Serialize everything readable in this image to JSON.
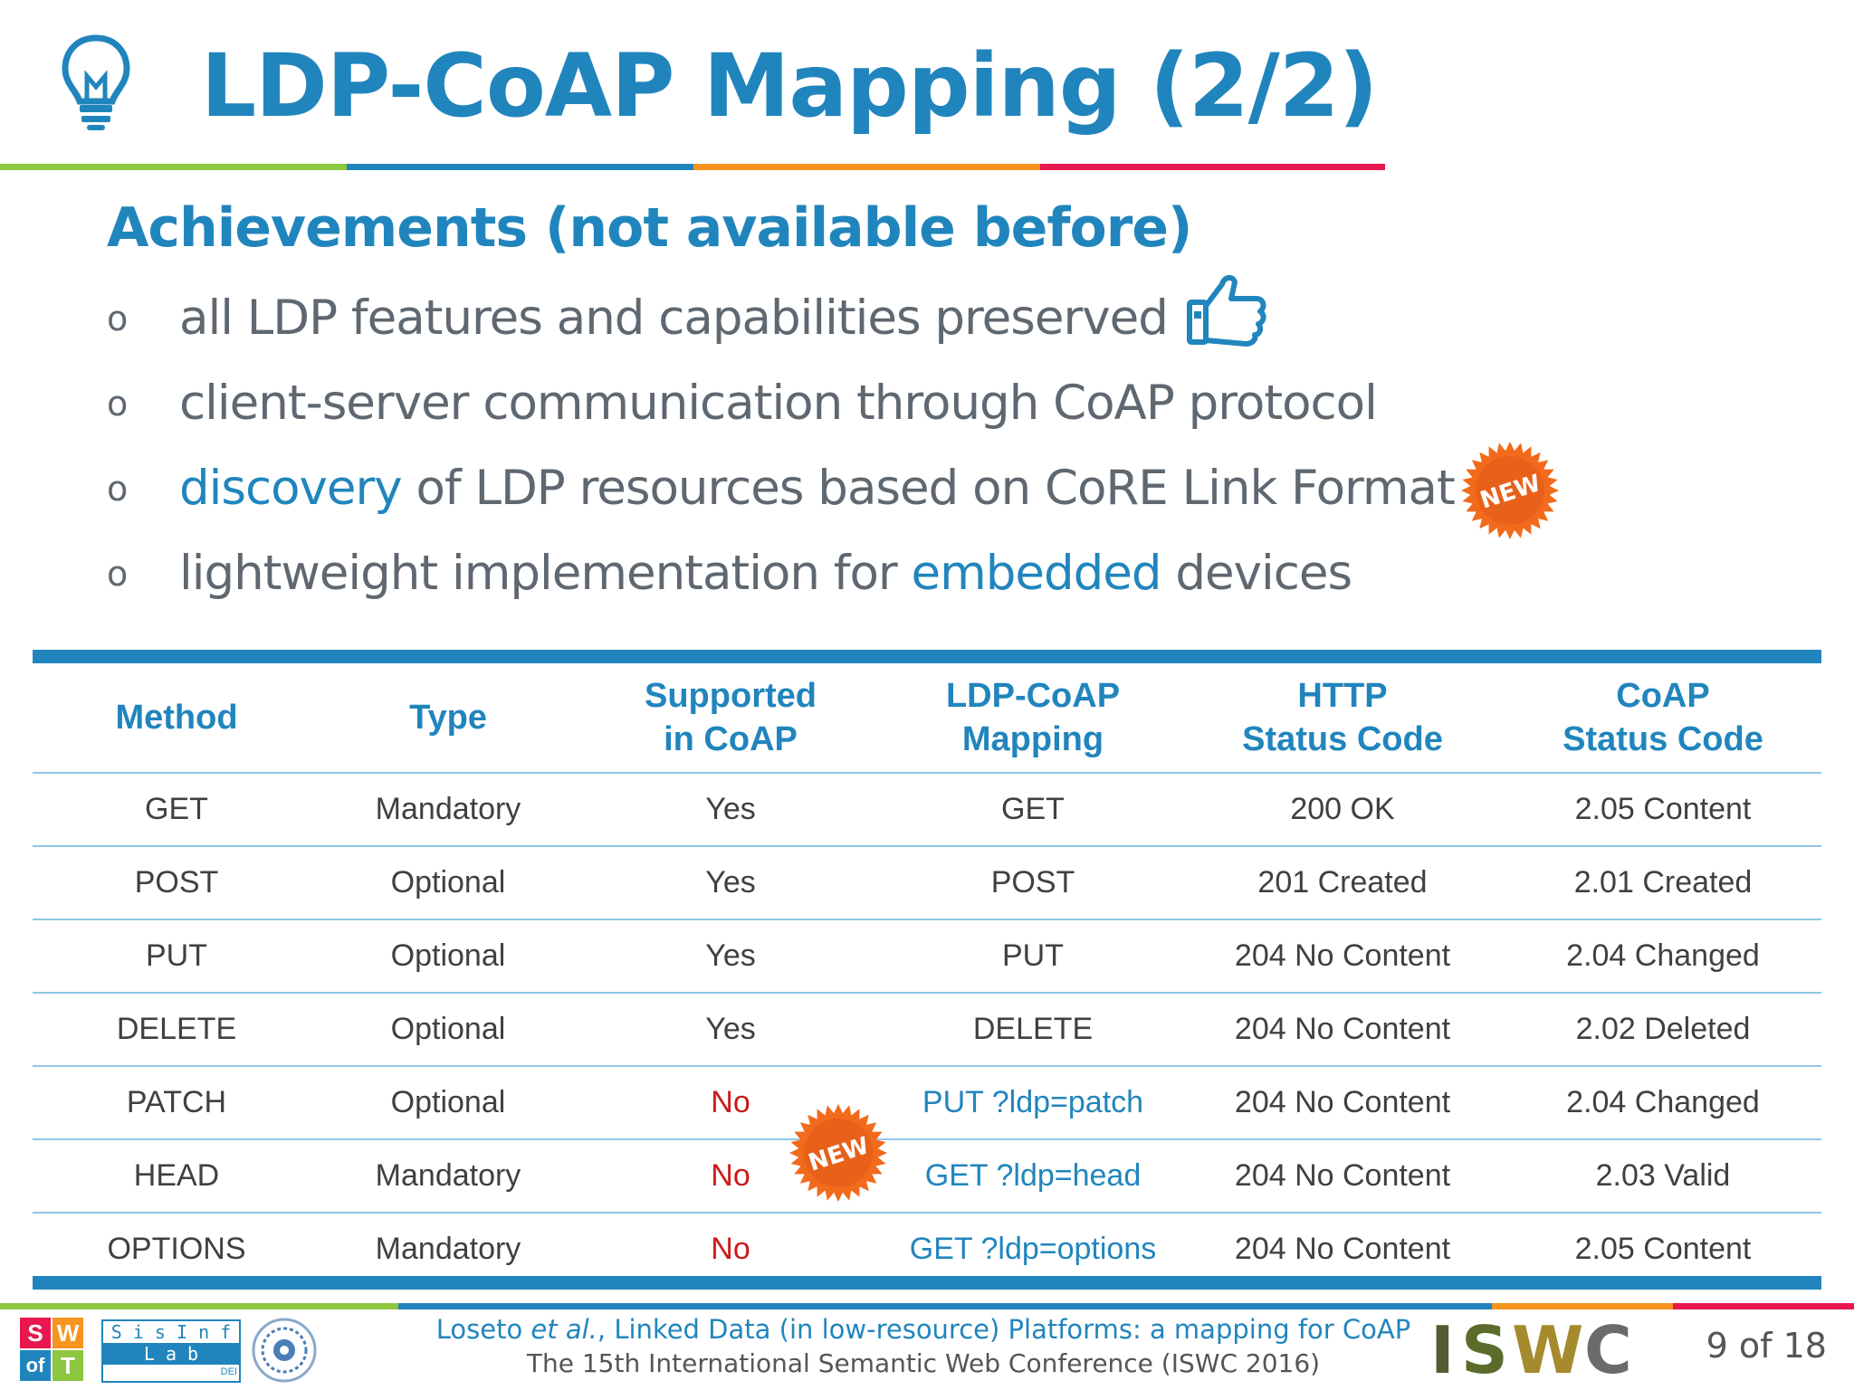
{
  "header": {
    "title": "LDP-CoAP Mapping (2/2)",
    "icon": "lightbulb-icon",
    "bar_colors": [
      "#8dc63f",
      "#2185bd",
      "#f7941d",
      "#e8174f"
    ]
  },
  "subtitle": "Achievements (not available before)",
  "bullets": [
    {
      "marker": "o",
      "parts": [
        "all LDP features and capabilities preserved"
      ],
      "icon": "thumbs-up-icon"
    },
    {
      "marker": "o",
      "parts": [
        "client-server communication through CoAP protocol"
      ]
    },
    {
      "marker": "o",
      "parts": [
        "discovery",
        " of LDP resources based on CoRE Link Format"
      ],
      "badge": "NEW"
    },
    {
      "marker": "o",
      "parts": [
        "lightweight implementation for ",
        "embedded",
        " devices"
      ]
    }
  ],
  "table": {
    "headers": [
      "Method",
      "Type",
      "Supported\nin CoAP",
      "LDP-CoAP\nMapping",
      "HTTP\nStatus Code",
      "CoAP\nStatus Code"
    ],
    "rows": [
      [
        "GET",
        "Mandatory",
        "Yes",
        "GET",
        "200 OK",
        "2.05 Content"
      ],
      [
        "POST",
        "Optional",
        "Yes",
        "POST",
        "201 Created",
        "2.01 Created"
      ],
      [
        "PUT",
        "Optional",
        "Yes",
        "PUT",
        "204 No Content",
        "2.04 Changed"
      ],
      [
        "DELETE",
        "Optional",
        "Yes",
        "DELETE",
        "204 No Content",
        "2.02 Deleted"
      ],
      [
        "PATCH",
        "Optional",
        "No",
        "PUT ?ldp=patch",
        "204 No Content",
        "2.04 Changed"
      ],
      [
        "HEAD",
        "Mandatory",
        "No",
        "GET ?ldp=head",
        "204 No Content",
        "2.03 Valid"
      ],
      [
        "OPTIONS",
        "Mandatory",
        "No",
        "GET ?ldp=options",
        "204 No Content",
        "2.05 Content"
      ]
    ],
    "badge": "NEW",
    "accent_color": "#2185bd",
    "no_color": "#cc1a1a"
  },
  "footer": {
    "citation_prefix": "Loseto ",
    "citation_italic": "et al.",
    "citation_suffix": ", Linked Data (in low-resource) Platforms: a mapping for CoAP",
    "conference": "The 15th International Semantic Web Conference (ISWC 2016)",
    "page": "9 of 18",
    "logos": {
      "swot": [
        "S",
        "W",
        "of",
        "T"
      ],
      "sisinf": [
        "S i s I n f",
        "L a b",
        "DEI"
      ],
      "iswc": [
        "I",
        "S",
        "W",
        "C"
      ]
    }
  }
}
